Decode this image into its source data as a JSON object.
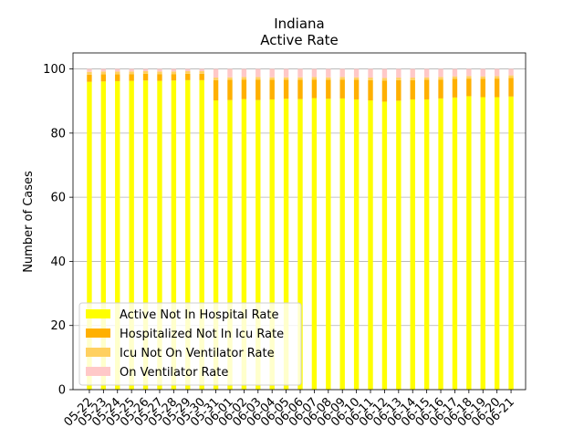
{
  "chart_data": {
    "type": "bar",
    "stacked": true,
    "title": "Indiana",
    "subtitle": "Active Rate",
    "xlabel": "",
    "ylabel": "Number of Cases",
    "ylim": [
      0,
      105
    ],
    "yticks": [
      0,
      20,
      40,
      60,
      80,
      100
    ],
    "grid": "horizontal",
    "legend_position": "lower-left",
    "categories": [
      "05-22",
      "05-23",
      "05-24",
      "05-25",
      "05-26",
      "05-27",
      "05-28",
      "05-29",
      "05-30",
      "05-31",
      "06-01",
      "06-02",
      "06-03",
      "06-04",
      "06-05",
      "06-06",
      "06-07",
      "06-08",
      "06-09",
      "06-10",
      "06-11",
      "06-12",
      "06-13",
      "06-14",
      "06-15",
      "06-16",
      "06-17",
      "06-18",
      "06-19",
      "06-20",
      "06-21"
    ],
    "series": [
      {
        "name": "Active Not In Hospital Rate",
        "color": "#ffff00",
        "values": [
          96.0,
          96.1,
          96.2,
          96.3,
          96.4,
          96.3,
          96.4,
          96.5,
          96.5,
          90.2,
          90.3,
          90.6,
          90.3,
          90.5,
          90.7,
          90.6,
          90.9,
          90.7,
          90.8,
          90.5,
          90.2,
          89.8,
          90.1,
          90.5,
          90.5,
          90.8,
          91.1,
          91.5,
          91.2,
          91.2,
          91.4
        ]
      },
      {
        "name": "Hospitalized Not In Icu Rate",
        "color": "#ffb000",
        "values": [
          2.2,
          2.2,
          2.1,
          2.1,
          2.1,
          2.1,
          2.0,
          2.0,
          2.0,
          6.3,
          6.3,
          6.1,
          6.4,
          6.1,
          5.9,
          6.0,
          5.8,
          5.9,
          5.9,
          6.1,
          6.3,
          6.6,
          6.4,
          6.0,
          6.1,
          5.9,
          5.8,
          5.5,
          5.7,
          5.8,
          5.8
        ]
      },
      {
        "name": "Icu Not On Ventilator Rate",
        "color": "#ffd060",
        "values": [
          0.9,
          0.9,
          0.9,
          0.8,
          0.8,
          0.8,
          0.8,
          0.8,
          0.8,
          0.8,
          0.8,
          0.8,
          0.8,
          0.8,
          0.8,
          0.8,
          0.8,
          0.8,
          0.8,
          0.8,
          0.8,
          0.8,
          0.8,
          0.8,
          0.8,
          0.8,
          0.8,
          0.8,
          0.8,
          0.8,
          0.8
        ]
      },
      {
        "name": "On Ventilator Rate",
        "color": "#ffc8c8",
        "values": [
          0.9,
          0.8,
          0.8,
          0.8,
          0.7,
          0.8,
          0.8,
          0.7,
          0.7,
          2.7,
          2.6,
          2.5,
          2.5,
          2.6,
          2.6,
          2.6,
          2.5,
          2.6,
          2.5,
          2.6,
          2.7,
          2.8,
          2.7,
          2.7,
          2.6,
          2.5,
          2.3,
          2.2,
          2.3,
          2.2,
          2.0
        ]
      }
    ]
  }
}
